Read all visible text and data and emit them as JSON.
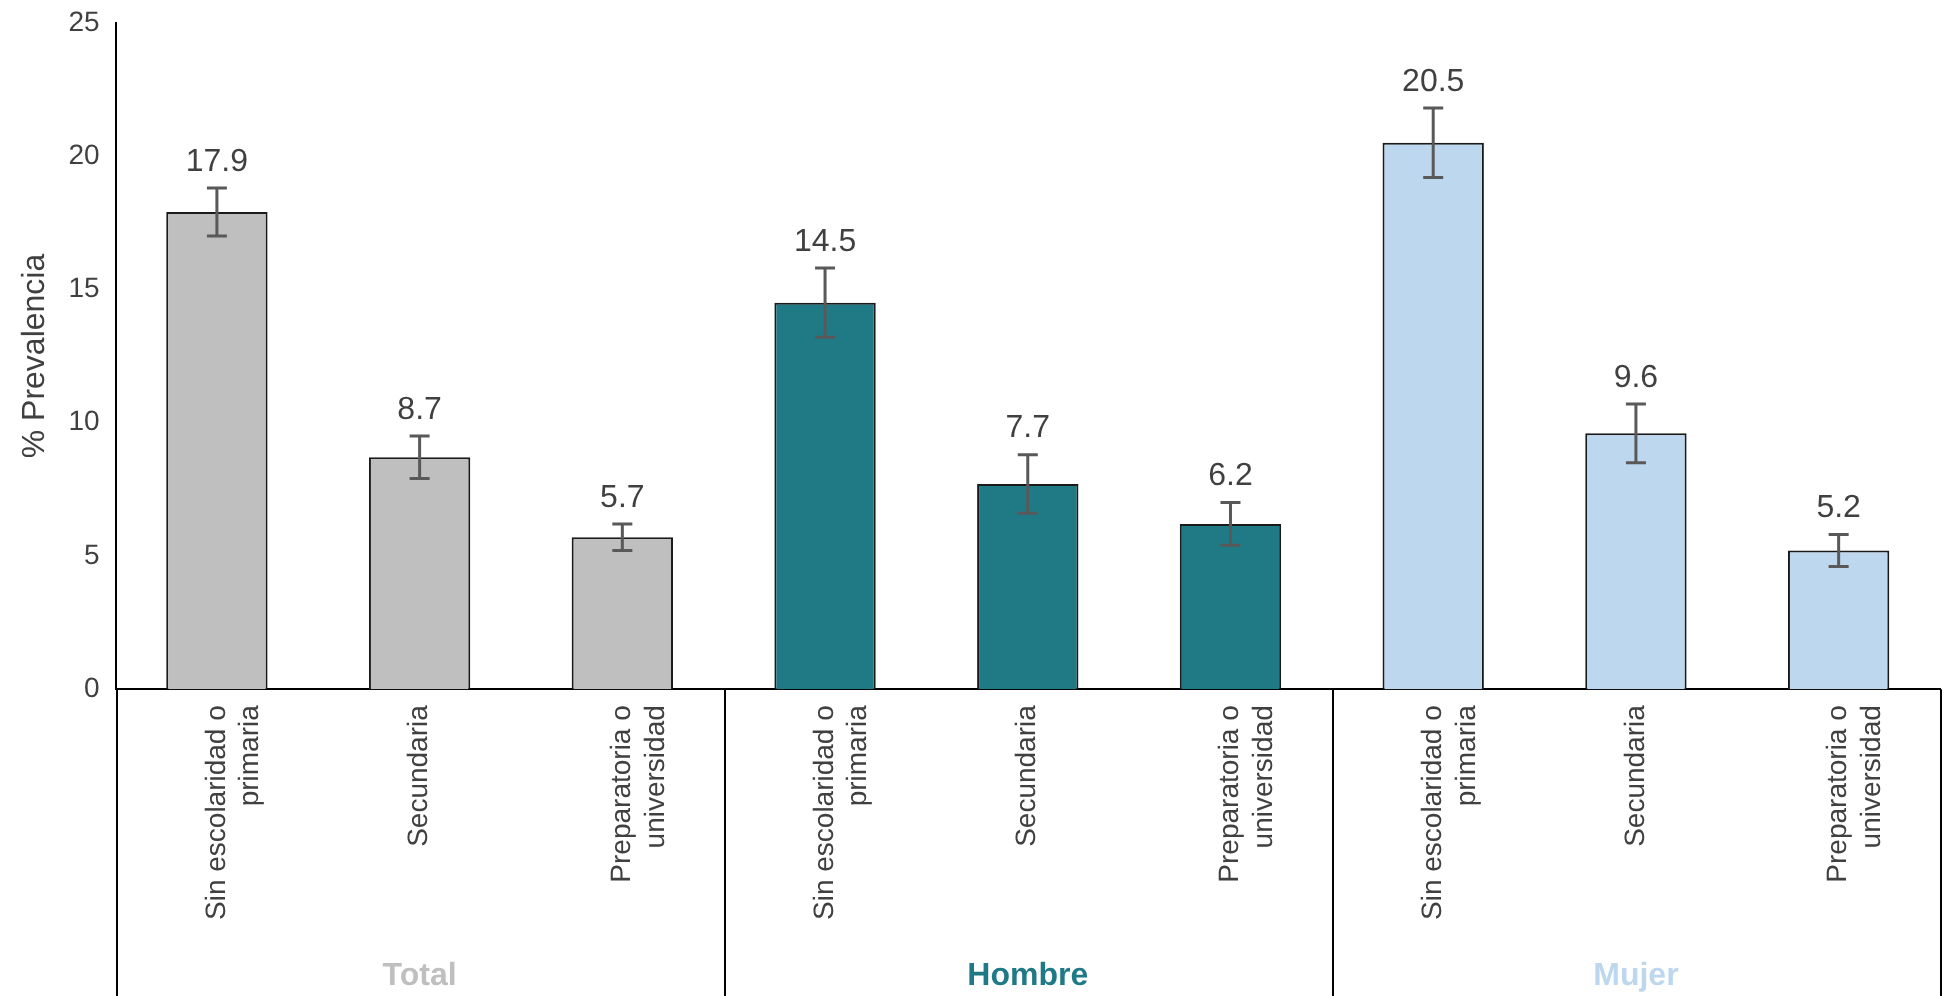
{
  "chart_data": {
    "type": "bar",
    "ylabel": "% Prevalencia",
    "categories": [
      "Sin escolaridad o primaria",
      "Secundaria",
      "Preparatoria o universidad",
      "Sin escolaridad o primaria",
      "Secundaria",
      "Preparatoria o universidad",
      "Sin escolaridad o primaria",
      "Secundaria",
      "Preparatoria o universidad"
    ],
    "series": [
      {
        "name": "Total",
        "color": "#bfbfbf",
        "values": [
          17.9,
          8.7,
          5.7,
          null,
          null,
          null,
          null,
          null,
          null
        ],
        "errors": [
          0.9,
          0.8,
          0.5,
          null,
          null,
          null,
          null,
          null,
          null
        ]
      },
      {
        "name": "Hombre",
        "color": "#1f7a86",
        "values": [
          null,
          null,
          null,
          14.5,
          7.7,
          6.2,
          null,
          null,
          null
        ],
        "errors": [
          null,
          null,
          null,
          1.3,
          1.1,
          0.8,
          null,
          null,
          null
        ]
      },
      {
        "name": "Mujer",
        "color": "#bdd7ee",
        "values": [
          null,
          null,
          null,
          null,
          null,
          null,
          20.5,
          9.6,
          5.2
        ],
        "errors": [
          null,
          null,
          null,
          null,
          null,
          null,
          1.3,
          1.1,
          0.6
        ]
      }
    ],
    "ylim": [
      0,
      25
    ],
    "yticks": [
      0,
      5,
      10,
      15,
      20,
      25
    ],
    "grid": false,
    "legend": false,
    "data_labels": true
  }
}
